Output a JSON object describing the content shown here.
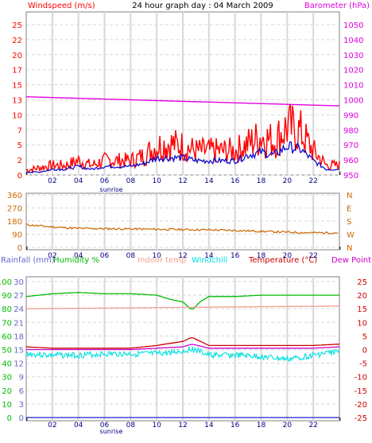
{
  "header": {
    "windspeed_label": "Windspeed (m/s)",
    "title": "24 hour graph day : 04 March 2009",
    "barometer_label": "Barometer (hPa)",
    "sunrise": "sunrise"
  },
  "panel2": {
    "directions": [
      "N",
      "W",
      "S",
      "E",
      "N"
    ]
  },
  "panel3": {
    "rainfall_label": "Rainfall (mm)",
    "humidity_label": "Humidity %",
    "indoor_label": "Indoor temp",
    "windchill_label": "Windchill",
    "temperature_label": "Temperature (°C)",
    "dewpoint_label": "Dew Point",
    "sunrise": "sunrise"
  },
  "colors": {
    "wind": "#ff0000",
    "wind_avg": "#0000cc",
    "barometer": "#e000e0",
    "direction": "#cc6600",
    "rainfall": "#6666cc",
    "humidity": "#00bb00",
    "indoor": "#f0a090",
    "windchill": "#00e0e0",
    "temperature": "#cc0000",
    "dewpoint": "#cc00cc",
    "grid": "#d8d8d8"
  },
  "chart_data": [
    {
      "type": "line",
      "title": "24 hour graph day : 04 March 2009",
      "x_ticks": [
        "02",
        "04",
        "06",
        "08",
        "10",
        "12",
        "14",
        "16",
        "18",
        "20",
        "22"
      ],
      "y_left_label": "Windspeed (m/s)",
      "y_left_ticks": [
        0,
        2,
        5,
        7,
        10,
        13,
        15,
        17,
        20,
        22,
        25
      ],
      "y_right_label": "Barometer (hPa)",
      "y_right_ticks": [
        950,
        960,
        970,
        980,
        990,
        1000,
        1010,
        1020,
        1030,
        1040,
        1050
      ],
      "series": [
        {
          "name": "Windspeed (m/s)",
          "x": [
            0,
            1,
            2,
            3,
            4,
            5,
            6,
            7,
            8,
            9,
            10,
            11,
            12,
            13,
            14,
            15,
            16,
            17,
            18,
            19,
            20,
            21,
            22,
            23,
            24
          ],
          "values": [
            1,
            1.5,
            2,
            2,
            3,
            2,
            3,
            3,
            3,
            4,
            6,
            6.5,
            6,
            5,
            5,
            5,
            5,
            6.5,
            8,
            7,
            10,
            9,
            5,
            2,
            2
          ]
        },
        {
          "name": "Barometer (hPa)",
          "x": [
            0,
            24
          ],
          "values": [
            1002,
            996
          ]
        },
        {
          "x": [
            0,
            1,
            2,
            3,
            4,
            5,
            6,
            7,
            8,
            9,
            10,
            11,
            12,
            13,
            14,
            15,
            16,
            17,
            18,
            19,
            20,
            21,
            22,
            23,
            24
          ],
          "values": [
            0.5,
            0.5,
            1,
            1,
            1.5,
            1,
            1.5,
            1.5,
            1.5,
            2,
            3,
            3,
            3,
            2.5,
            2.5,
            2.5,
            2.5,
            3.5,
            4,
            3.5,
            5,
            4.5,
            2.5,
            1,
            1
          ]
        }
      ]
    },
    {
      "type": "line",
      "y_ticks": [
        0,
        90,
        180,
        270,
        360
      ],
      "y_right_ticks": [
        "N",
        "W",
        "S",
        "E",
        "N"
      ],
      "x_ticks": [
        "02",
        "04",
        "06",
        "08",
        "10",
        "12",
        "14",
        "16",
        "18",
        "20",
        "22"
      ],
      "series": [
        {
          "x": [
            0,
            2,
            4,
            6,
            8,
            10,
            12,
            14,
            16,
            18,
            20,
            22,
            24
          ],
          "values": [
            155,
            140,
            130,
            128,
            126,
            124,
            122,
            120,
            116,
            110,
            104,
            100,
            100
          ]
        }
      ]
    },
    {
      "type": "line",
      "x_ticks": [
        "02",
        "04",
        "06",
        "08",
        "10",
        "12",
        "14",
        "16",
        "18",
        "20",
        "22"
      ],
      "y_left_ticks_humidity": [
        0,
        10,
        20,
        30,
        40,
        50,
        60,
        70,
        80,
        90,
        100
      ],
      "y_left_ticks_rainfall": [
        0,
        3,
        6,
        9,
        12,
        15,
        18,
        21,
        24,
        27,
        30
      ],
      "y_right_ticks": [
        -25,
        -20,
        -15,
        -10,
        -5,
        0,
        5,
        10,
        15,
        20,
        25
      ],
      "series": [
        {
          "name": "Humidity %",
          "x": [
            0,
            2,
            4,
            6,
            8,
            10,
            11,
            12,
            12.7,
            13.3,
            14,
            16,
            18,
            20,
            22,
            24
          ],
          "values": [
            89,
            91,
            92,
            91,
            91,
            90,
            87,
            85,
            79,
            85,
            89,
            89,
            90,
            90,
            90,
            90
          ]
        },
        {
          "name": "Indoor temp",
          "x": [
            0,
            24
          ],
          "values": [
            15,
            16
          ]
        },
        {
          "name": "Windchill",
          "x": [
            0,
            2,
            4,
            6,
            8,
            10,
            12,
            12.7,
            14,
            16,
            18,
            20,
            22,
            24
          ],
          "values": [
            -0.5,
            -1,
            -1,
            -0.5,
            -0.5,
            -0.5,
            0.5,
            1.5,
            -1,
            -1,
            -1.5,
            -2.5,
            -1,
            0.5
          ]
        },
        {
          "name": "Temperature (°C)",
          "x": [
            0,
            2,
            4,
            6,
            8,
            10,
            12,
            12.7,
            14,
            16,
            18,
            20,
            22,
            24
          ],
          "values": [
            1,
            0.5,
            0.5,
            0.5,
            0.5,
            1.5,
            3,
            4.5,
            1.5,
            1.5,
            1.5,
            1.5,
            1.5,
            2
          ]
        },
        {
          "name": "Dew Point",
          "x": [
            0,
            2,
            4,
            6,
            8,
            10,
            12,
            12.7,
            14,
            16,
            18,
            20,
            22,
            24
          ],
          "values": [
            0,
            0,
            0,
            0,
            0,
            0.5,
            1,
            2,
            0.5,
            0.5,
            0.5,
            0.5,
            0.5,
            1
          ]
        },
        {
          "name": "Rainfall (mm)",
          "x": [
            0,
            24
          ],
          "values": [
            0,
            0
          ]
        }
      ]
    }
  ]
}
